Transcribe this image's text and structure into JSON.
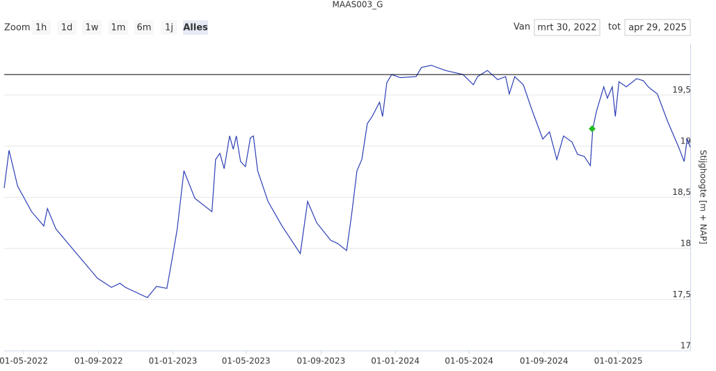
{
  "range_selector": {
    "zoom_label": "Zoom",
    "buttons": [
      "1h",
      "1d",
      "1w",
      "1m",
      "6m",
      "1j",
      "Alles"
    ],
    "selected": 6,
    "from_label": "Van",
    "from_value": "mrt 30, 2022",
    "to_label": "tot",
    "to_value": "apr 29, 2025"
  },
  "chart_data": {
    "type": "line",
    "title": "MAAS003_G",
    "y_axis_label": "Stijghoogte [m + NAP]",
    "color": "#2a3db5",
    "grid": true,
    "xlim": [
      "2022-03-30",
      "2025-04-29"
    ],
    "xticks": [
      {
        "value": "2022-05-01",
        "label": "01-05-2022"
      },
      {
        "value": "2022-09-01",
        "label": "01-09-2022"
      },
      {
        "value": "2023-01-01",
        "label": "01-01-2023"
      },
      {
        "value": "2023-05-01",
        "label": "01-05-2023"
      },
      {
        "value": "2023-09-01",
        "label": "01-09-2023"
      },
      {
        "value": "2024-01-01",
        "label": "01-01-2024"
      },
      {
        "value": "2024-05-01",
        "label": "01-05-2024"
      },
      {
        "value": "2024-09-01",
        "label": "01-09-2024"
      },
      {
        "value": "2025-01-01",
        "label": "01-01-2025"
      }
    ],
    "ylim": [
      17,
      20
    ],
    "yticks": [
      17,
      {
        "value": 17.5,
        "label": "17,5"
      },
      18,
      {
        "value": 18.5,
        "label": "18,5"
      },
      19,
      {
        "value": 19.5,
        "label": "19,5"
      }
    ],
    "plot_line": {
      "value": 19.7,
      "color": "#000000"
    },
    "highlight": {
      "x": "2024-11-19",
      "value": 19.17,
      "color": "#22bb22"
    },
    "x": [
      "2022-03-30",
      "2022-04-07",
      "2022-04-21",
      "2022-05-14",
      "2022-06-03",
      "2022-06-09",
      "2022-06-23",
      "2022-07-27",
      "2022-08-30",
      "2022-09-22",
      "2022-10-06",
      "2022-10-15",
      "2022-11-20",
      "2022-12-05",
      "2022-12-22",
      "2022-12-31",
      "2023-01-08",
      "2023-01-19",
      "2023-02-06",
      "2023-03-06",
      "2023-03-12",
      "2023-03-19",
      "2023-03-26",
      "2023-04-04",
      "2023-04-10",
      "2023-04-15",
      "2023-04-22",
      "2023-04-30",
      "2023-05-08",
      "2023-05-13",
      "2023-05-20",
      "2023-06-06",
      "2023-06-29",
      "2023-07-29",
      "2023-08-10",
      "2023-08-25",
      "2023-09-17",
      "2023-09-28",
      "2023-10-13",
      "2023-10-21",
      "2023-10-30",
      "2023-11-07",
      "2023-11-16",
      "2023-11-24",
      "2023-12-06",
      "2023-12-11",
      "2023-12-18",
      "2023-12-26",
      "2024-01-09",
      "2024-02-04",
      "2024-02-13",
      "2024-02-29",
      "2024-03-23",
      "2024-04-21",
      "2024-05-08",
      "2024-05-15",
      "2024-05-31",
      "2024-06-17",
      "2024-06-30",
      "2024-07-06",
      "2024-07-15",
      "2024-07-29",
      "2024-08-13",
      "2024-08-30",
      "2024-09-10",
      "2024-09-22",
      "2024-10-03",
      "2024-10-17",
      "2024-10-26",
      "2024-11-06",
      "2024-11-16",
      "2024-11-20",
      "2024-11-26",
      "2024-12-08",
      "2024-12-14",
      "2024-12-22",
      "2024-12-27",
      "2025-01-02",
      "2025-01-14",
      "2025-01-31",
      "2025-02-11",
      "2025-02-19",
      "2025-03-06",
      "2025-03-23",
      "2025-04-10",
      "2025-04-19",
      "2025-04-24",
      "2025-04-29"
    ],
    "values": [
      18.59,
      18.96,
      18.61,
      18.36,
      18.22,
      18.39,
      18.19,
      17.95,
      17.71,
      17.62,
      17.66,
      17.62,
      17.52,
      17.63,
      17.61,
      17.91,
      18.19,
      18.76,
      18.49,
      18.36,
      18.87,
      18.93,
      18.78,
      19.1,
      18.97,
      19.1,
      18.85,
      18.8,
      19.08,
      19.1,
      18.76,
      18.46,
      18.22,
      17.95,
      18.46,
      18.25,
      18.08,
      18.05,
      17.98,
      18.32,
      18.76,
      18.87,
      19.22,
      19.29,
      19.43,
      19.29,
      19.62,
      19.7,
      19.67,
      19.68,
      19.77,
      19.79,
      19.74,
      19.7,
      19.6,
      19.68,
      19.74,
      19.65,
      19.68,
      19.51,
      19.68,
      19.6,
      19.34,
      19.07,
      19.14,
      18.87,
      19.1,
      19.04,
      18.92,
      18.9,
      18.81,
      19.17,
      19.34,
      19.58,
      19.47,
      19.58,
      19.29,
      19.63,
      19.58,
      19.66,
      19.64,
      19.58,
      19.51,
      19.24,
      18.99,
      18.85,
      19.07,
      18.99
    ]
  }
}
